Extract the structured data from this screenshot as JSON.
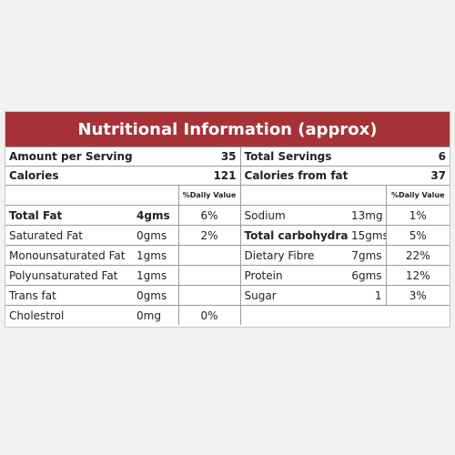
{
  "header": {
    "title": "Nutritional Information (approx)"
  },
  "summary": [
    {
      "label": "Amount per Serving",
      "value": "35",
      "label2": "Total Servings",
      "value2": "6"
    },
    {
      "label": "Calories",
      "value": "121",
      "label2": "Calories from fat",
      "value2": "37"
    }
  ],
  "dv_header": {
    "left": "%Daily Value",
    "right": "%Daily Value"
  },
  "left_rows": [
    {
      "name": "Total Fat",
      "amount": "4gms",
      "dv": "6%"
    },
    {
      "name": "Saturated Fat",
      "amount": "0gms",
      "dv": "2%"
    },
    {
      "name": "Monounsaturated Fat",
      "amount": "1gms"
    },
    {
      "name": "Polyunsaturated Fat",
      "amount": "1gms"
    },
    {
      "name": "Trans fat",
      "amount": "0gms"
    },
    {
      "name": "Cholestrol",
      "amount": "0mg",
      "dv": "0%"
    }
  ],
  "right_rows": [
    {
      "name": "Sodium",
      "amount": "13mg",
      "dv": "1%"
    },
    {
      "name": "Total carbohydrate",
      "amount": "15gms",
      "dv": "5%"
    },
    {
      "name": "Dietary Fibre",
      "amount": "7gms",
      "dv": "22%"
    },
    {
      "name": "Protein",
      "amount": "6gms",
      "dv": "12%"
    },
    {
      "name": "Sugar",
      "amount": "1",
      "dv": "3%"
    }
  ]
}
